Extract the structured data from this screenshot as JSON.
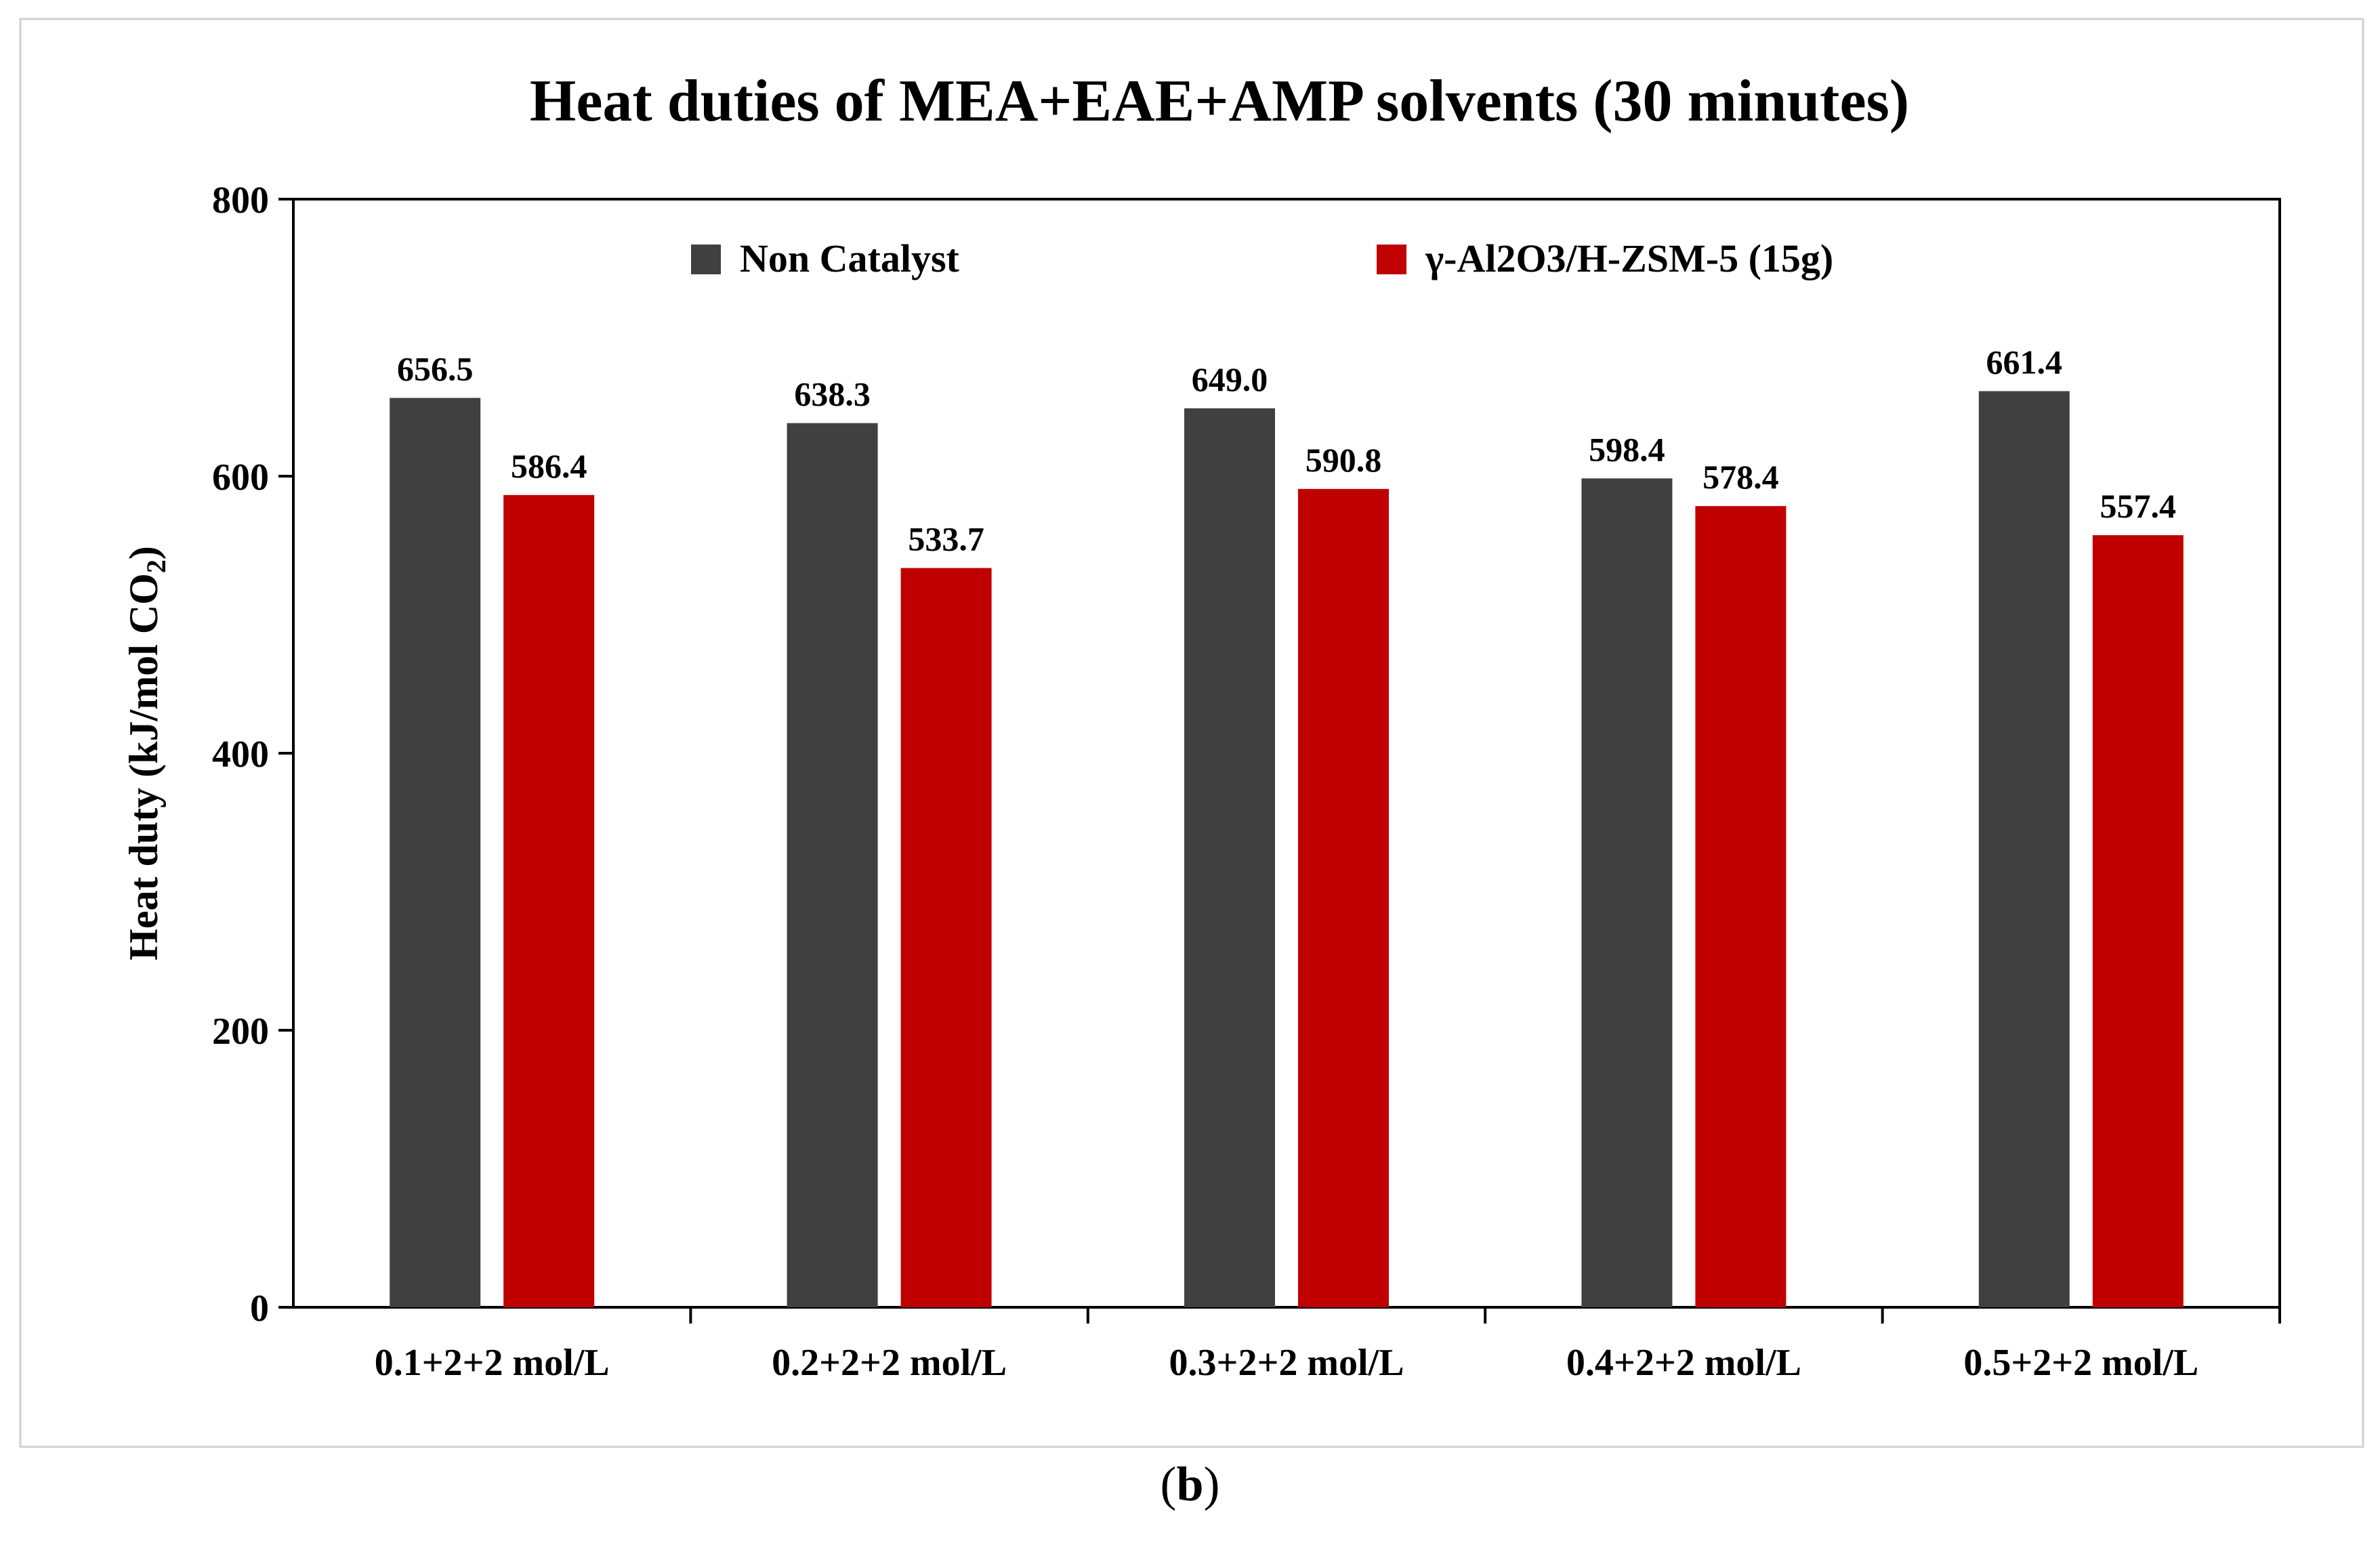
{
  "chart_data": {
    "type": "bar",
    "title": "Heat duties of MEA+EAE+AMP solvents   (30 minutes)",
    "xlabel": "",
    "ylabel": "Heat duty (kJ/mol CO",
    "ylabel_subscript": "2",
    "ylabel_suffix": ")",
    "ylim": [
      0,
      800
    ],
    "yticks": [
      0,
      200,
      400,
      600,
      800
    ],
    "categories": [
      "0.1+2+2 mol/L",
      "0.2+2+2 mol/L",
      "0.3+2+2 mol/L",
      "0.4+2+2 mol/L",
      "0.5+2+2 mol/L"
    ],
    "series": [
      {
        "name": "Non Catalyst",
        "color": "#404040",
        "values": [
          656.5,
          638.3,
          649.0,
          598.4,
          661.4
        ],
        "labels": [
          "656.5",
          "638.3",
          "649.0",
          "598.4",
          "661.4"
        ]
      },
      {
        "name": "γ-Al2O3/H-ZSM-5 (15g)",
        "color": "#c00000",
        "values": [
          586.4,
          533.7,
          590.8,
          578.4,
          557.4
        ],
        "labels": [
          "586.4",
          "533.7",
          "590.8",
          "578.4",
          "557.4"
        ]
      }
    ],
    "legend_position": "top"
  },
  "caption": {
    "open": "(",
    "letter": "b",
    "close": ")"
  }
}
